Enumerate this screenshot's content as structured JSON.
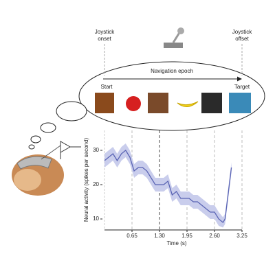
{
  "chart_data": {
    "type": "line",
    "joystick_onset": [
      "Joystick",
      "onset"
    ],
    "joystick_offset": [
      "Joystick",
      "offset"
    ],
    "epoch_label": "Navigation epoch",
    "start_label": "Start",
    "target_label": "Target",
    "xlabel": "Time (s)",
    "ylabel": "Neural activity  (spikes per second)",
    "xlim": [
      0,
      3.25
    ],
    "ylim": [
      6.8,
      35.8
    ],
    "xticks": [
      0.65,
      {
        "value": 1.3,
        "label": "1.30"
      },
      1.95,
      {
        "value": 2.6,
        "label": "2.60"
      },
      3.25
    ],
    "yticks": [
      10,
      20,
      30
    ],
    "series": [
      {
        "color": "#5a64b4",
        "band_color": "#c9cdec",
        "x": [
          0,
          0.1,
          0.2,
          0.3,
          0.4,
          0.5,
          0.6,
          0.7,
          0.8,
          0.9,
          1.0,
          1.1,
          1.2,
          1.3,
          1.4,
          1.5,
          1.6,
          1.7,
          1.8,
          1.9,
          2.0,
          2.1,
          2.2,
          2.3,
          2.4,
          2.5,
          2.6,
          2.7,
          2.8,
          2.85,
          2.9,
          3.0
        ],
        "values": [
          27,
          28,
          29,
          27,
          29,
          30,
          28,
          24,
          25,
          25,
          24,
          22,
          20,
          20,
          20,
          21,
          17,
          18,
          16,
          16,
          16,
          15,
          15,
          14,
          13,
          12,
          12,
          10,
          9,
          10,
          15,
          25
        ],
        "errors": [
          2,
          2,
          2,
          2,
          2,
          2,
          2,
          2,
          2,
          2,
          2,
          2,
          2,
          2,
          2,
          2,
          2,
          2,
          2,
          2,
          2,
          2,
          2,
          2,
          2,
          2,
          2,
          2,
          1.5,
          1.5,
          1.5,
          1.5
        ]
      }
    ]
  }
}
